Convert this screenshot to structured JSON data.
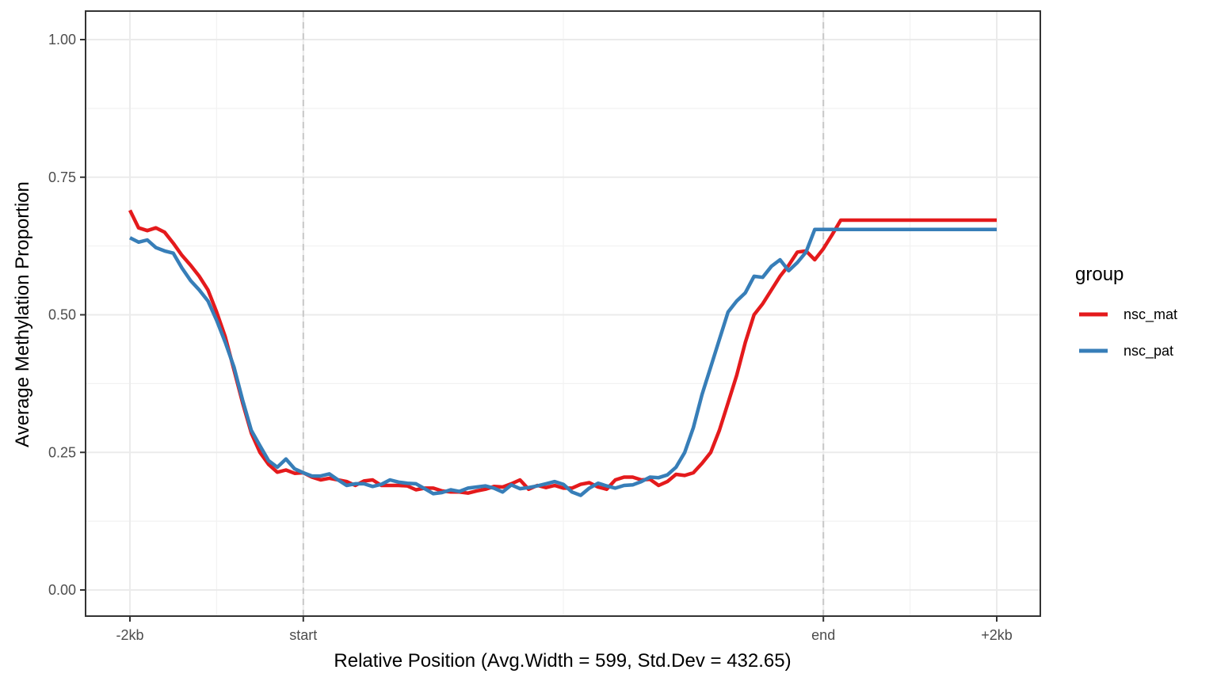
{
  "chart_data": {
    "type": "line",
    "xlabel": "Relative Position (Avg.Width = 599, Std.Dev = 432.65)",
    "ylabel": "Average Methylation Proportion",
    "ylim": [
      0,
      1
    ],
    "xlim": [
      0,
      100
    ],
    "grid": true,
    "legend_title": "group",
    "legend_position": "right",
    "x_ticks": [
      {
        "value": 0,
        "label": "-2kb"
      },
      {
        "value": 20,
        "label": "start"
      },
      {
        "value": 80,
        "label": "end"
      },
      {
        "value": 100,
        "label": "+2kb"
      }
    ],
    "y_ticks": [
      {
        "value": 0,
        "label": "0.00"
      },
      {
        "value": 0.25,
        "label": "0.25"
      },
      {
        "value": 0.5,
        "label": "0.50"
      },
      {
        "value": 0.75,
        "label": "0.75"
      },
      {
        "value": 1,
        "label": "1.00"
      }
    ],
    "region_markers": [
      20,
      80
    ],
    "x": [
      0,
      1,
      2,
      3,
      4,
      5,
      6,
      7,
      8,
      9,
      10,
      11,
      12,
      13,
      14,
      15,
      16,
      17,
      18,
      19,
      20,
      21,
      22,
      23,
      24,
      25,
      26,
      27,
      28,
      29,
      30,
      31,
      32,
      33,
      34,
      35,
      36,
      37,
      38,
      39,
      40,
      41,
      42,
      43,
      44,
      45,
      46,
      47,
      48,
      49,
      50,
      51,
      52,
      53,
      54,
      55,
      56,
      57,
      58,
      59,
      60,
      61,
      62,
      63,
      64,
      65,
      66,
      67,
      68,
      69,
      70,
      71,
      72,
      73,
      74,
      75,
      76,
      77,
      78,
      79,
      80,
      81,
      82,
      83,
      84,
      85,
      86,
      87,
      88,
      89,
      90,
      91,
      92,
      93,
      94,
      95,
      96,
      97,
      98,
      99,
      100
    ],
    "series": [
      {
        "name": "nsc_mat",
        "color": "#e41a1c",
        "values": [
          0.69,
          0.658,
          0.653,
          0.658,
          0.65,
          0.63,
          0.608,
          0.59,
          0.57,
          0.545,
          0.505,
          0.46,
          0.4,
          0.34,
          0.285,
          0.25,
          0.228,
          0.214,
          0.218,
          0.212,
          0.213,
          0.205,
          0.2,
          0.203,
          0.2,
          0.197,
          0.19,
          0.198,
          0.2,
          0.19,
          0.19,
          0.19,
          0.189,
          0.182,
          0.185,
          0.185,
          0.18,
          0.178,
          0.178,
          0.176,
          0.18,
          0.183,
          0.188,
          0.187,
          0.193,
          0.2,
          0.183,
          0.19,
          0.186,
          0.19,
          0.185,
          0.185,
          0.192,
          0.195,
          0.187,
          0.183,
          0.2,
          0.205,
          0.205,
          0.2,
          0.201,
          0.19,
          0.197,
          0.21,
          0.208,
          0.213,
          0.23,
          0.25,
          0.29,
          0.34,
          0.39,
          0.45,
          0.5,
          0.52,
          0.545,
          0.57,
          0.59,
          0.614,
          0.616,
          0.6,
          0.62,
          0.645,
          0.672,
          0.672,
          0.672,
          0.672,
          0.672,
          0.672,
          0.672,
          0.672,
          0.672,
          0.672,
          0.672,
          0.672,
          0.672,
          0.672,
          0.672,
          0.672,
          0.672,
          0.672,
          0.672
        ]
      },
      {
        "name": "nsc_pat",
        "color": "#377eb8",
        "values": [
          0.64,
          0.632,
          0.636,
          0.622,
          0.616,
          0.612,
          0.585,
          0.562,
          0.545,
          0.525,
          0.49,
          0.45,
          0.405,
          0.345,
          0.29,
          0.262,
          0.235,
          0.223,
          0.238,
          0.22,
          0.213,
          0.207,
          0.207,
          0.211,
          0.2,
          0.19,
          0.193,
          0.193,
          0.188,
          0.192,
          0.2,
          0.196,
          0.194,
          0.193,
          0.184,
          0.175,
          0.177,
          0.182,
          0.179,
          0.185,
          0.187,
          0.189,
          0.185,
          0.178,
          0.191,
          0.184,
          0.186,
          0.189,
          0.193,
          0.197,
          0.192,
          0.178,
          0.172,
          0.185,
          0.194,
          0.189,
          0.185,
          0.19,
          0.191,
          0.197,
          0.205,
          0.204,
          0.209,
          0.223,
          0.25,
          0.295,
          0.355,
          0.405,
          0.455,
          0.505,
          0.525,
          0.54,
          0.57,
          0.568,
          0.588,
          0.6,
          0.58,
          0.595,
          0.614,
          0.655,
          0.655,
          0.655,
          0.655,
          0.655,
          0.655,
          0.655,
          0.655,
          0.655,
          0.655,
          0.655,
          0.655,
          0.655,
          0.655,
          0.655,
          0.655,
          0.655,
          0.655,
          0.655,
          0.655,
          0.655,
          0.655
        ]
      }
    ]
  }
}
